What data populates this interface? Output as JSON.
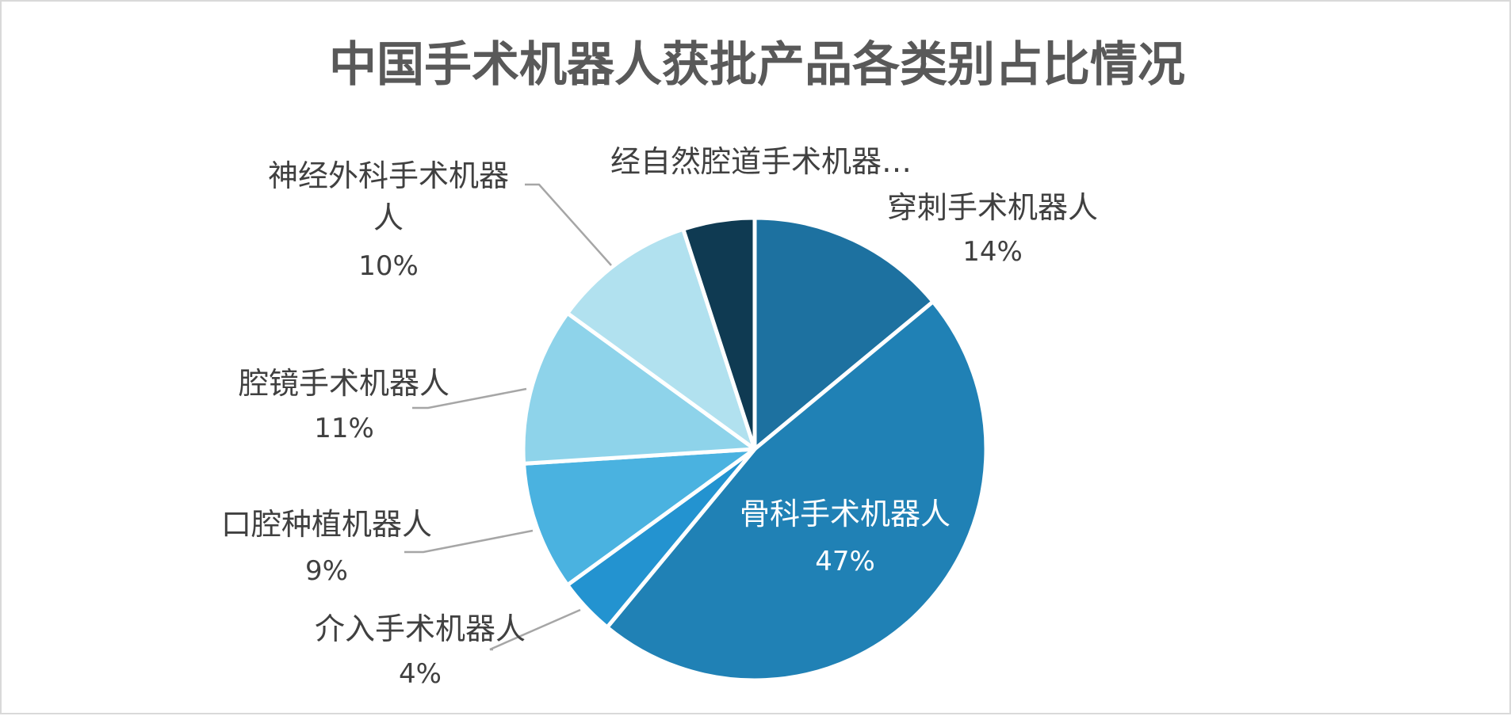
{
  "chart_data": {
    "type": "pie",
    "title": "中国手术机器人获批产品各类别占比情况",
    "slices": [
      {
        "name": "穿刺手术机器人",
        "value": 14,
        "label": "14%",
        "color": "#1d71a0"
      },
      {
        "name": "骨科手术机器人",
        "value": 47,
        "label": "47%",
        "color": "#2081b5"
      },
      {
        "name": "介入手术机器人",
        "value": 4,
        "label": "4%",
        "color": "#2393d0"
      },
      {
        "name": "口腔种植机器人",
        "value": 9,
        "label": "9%",
        "color": "#4ab2e0"
      },
      {
        "name": "腔镜手术机器人",
        "value": 11,
        "label": "11%",
        "color": "#8ed3ea"
      },
      {
        "name": "神经外科手术机器人",
        "value": 10,
        "label": "10%",
        "color": "#b1e1ef"
      },
      {
        "name": "经自然腔道手术机器…",
        "value": 5,
        "label": "",
        "color": "#0f3a52"
      }
    ]
  }
}
